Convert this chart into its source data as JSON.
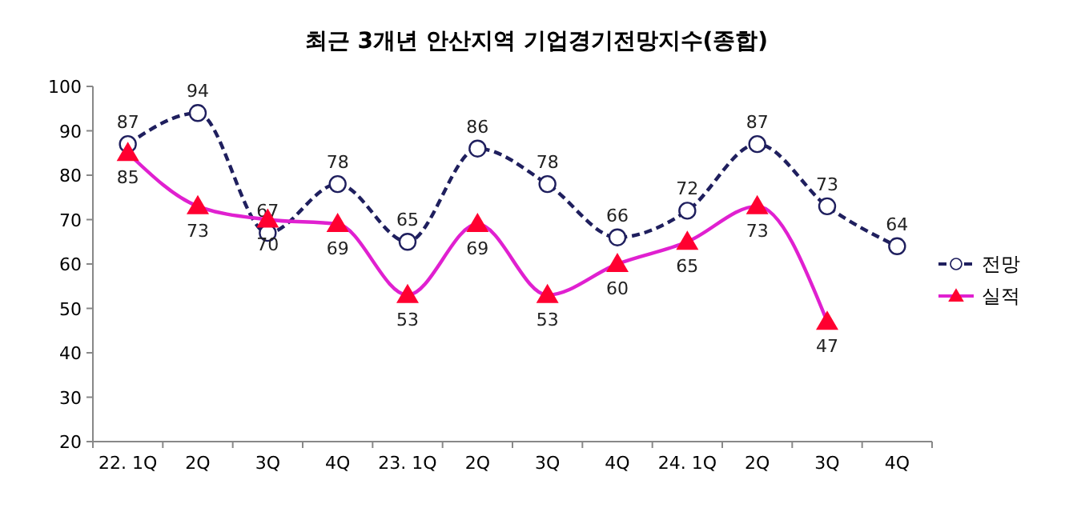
{
  "chart_data": {
    "type": "line",
    "title": "최근 3개년 안산지역 기업경기전망지수(종합)",
    "categories": [
      "22. 1Q",
      "2Q",
      "3Q",
      "4Q",
      "23. 1Q",
      "2Q",
      "3Q",
      "4Q",
      "24. 1Q",
      "2Q",
      "3Q",
      "4Q"
    ],
    "series": [
      {
        "name": "전망",
        "color": "#1f1f5e",
        "marker": "circle",
        "line_style": "dashed",
        "values": [
          87,
          94,
          67,
          78,
          65,
          86,
          78,
          66,
          72,
          87,
          73,
          64
        ]
      },
      {
        "name": "실적",
        "color": "#e020d0",
        "marker": "triangle",
        "line_style": "solid",
        "values": [
          85,
          73,
          70,
          69,
          53,
          69,
          53,
          60,
          65,
          73,
          47,
          null
        ]
      }
    ],
    "ylim": [
      20,
      100
    ],
    "yticks": [
      20,
      30,
      40,
      50,
      60,
      70,
      80,
      90,
      100
    ],
    "grid": false,
    "legend": "right",
    "data_labels": true
  }
}
